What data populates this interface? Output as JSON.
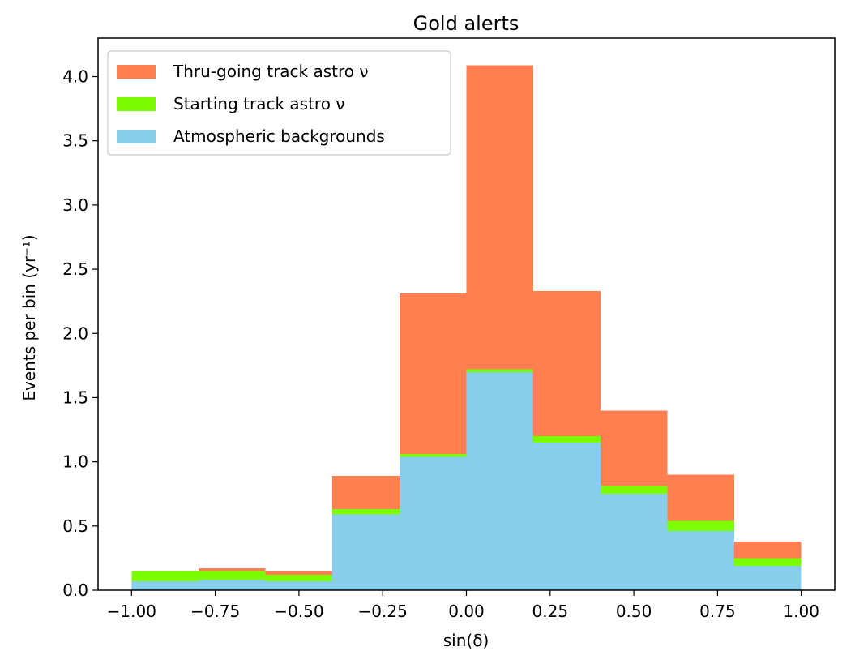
{
  "chart_data": {
    "type": "bar",
    "stacked": true,
    "histogram": true,
    "title": "Gold alerts",
    "xlabel": "sin(δ)",
    "ylabel": "Events per bin (yr⁻¹)",
    "xlim": [
      -1.1,
      1.1
    ],
    "ylim": [
      0.0,
      4.3
    ],
    "bin_edges": [
      -1.0,
      -0.8,
      -0.6,
      -0.4,
      -0.2,
      0.0,
      0.2,
      0.4,
      0.6,
      0.8,
      1.0
    ],
    "xticks": [
      {
        "value": -1.0,
        "label": "−1.00"
      },
      {
        "value": -0.75,
        "label": "−0.75"
      },
      {
        "value": -0.5,
        "label": "−0.50"
      },
      {
        "value": -0.25,
        "label": "−0.25"
      },
      {
        "value": 0.0,
        "label": "0.00"
      },
      {
        "value": 0.25,
        "label": "0.25"
      },
      {
        "value": 0.5,
        "label": "0.50"
      },
      {
        "value": 0.75,
        "label": "0.75"
      },
      {
        "value": 1.0,
        "label": "1.00"
      }
    ],
    "yticks": [
      {
        "value": 0.0,
        "label": "0.0"
      },
      {
        "value": 0.5,
        "label": "0.5"
      },
      {
        "value": 1.0,
        "label": "1.0"
      },
      {
        "value": 1.5,
        "label": "1.5"
      },
      {
        "value": 2.0,
        "label": "2.0"
      },
      {
        "value": 2.5,
        "label": "2.5"
      },
      {
        "value": 3.0,
        "label": "3.0"
      },
      {
        "value": 3.5,
        "label": "3.5"
      },
      {
        "value": 4.0,
        "label": "4.0"
      }
    ],
    "series": [
      {
        "name": "Atmospheric backgrounds",
        "color": "#87ceeb",
        "values": [
          0.07,
          0.08,
          0.07,
          0.59,
          1.04,
          1.7,
          1.15,
          0.75,
          0.46,
          0.19
        ]
      },
      {
        "name": "Starting track astro ν",
        "color": "#7cfc00",
        "values": [
          0.08,
          0.07,
          0.05,
          0.04,
          0.02,
          0.02,
          0.05,
          0.06,
          0.08,
          0.06
        ]
      },
      {
        "name": "Thru-going track astro ν",
        "color": "#ff7f50",
        "values": [
          0.0,
          0.02,
          0.03,
          0.26,
          1.25,
          2.37,
          1.13,
          0.59,
          0.36,
          0.13
        ]
      }
    ],
    "legend": {
      "position": "top-left",
      "entries": [
        "Thru-going track astro ν",
        "Starting track astro ν",
        "Atmospheric backgrounds"
      ]
    },
    "grid": false
  }
}
